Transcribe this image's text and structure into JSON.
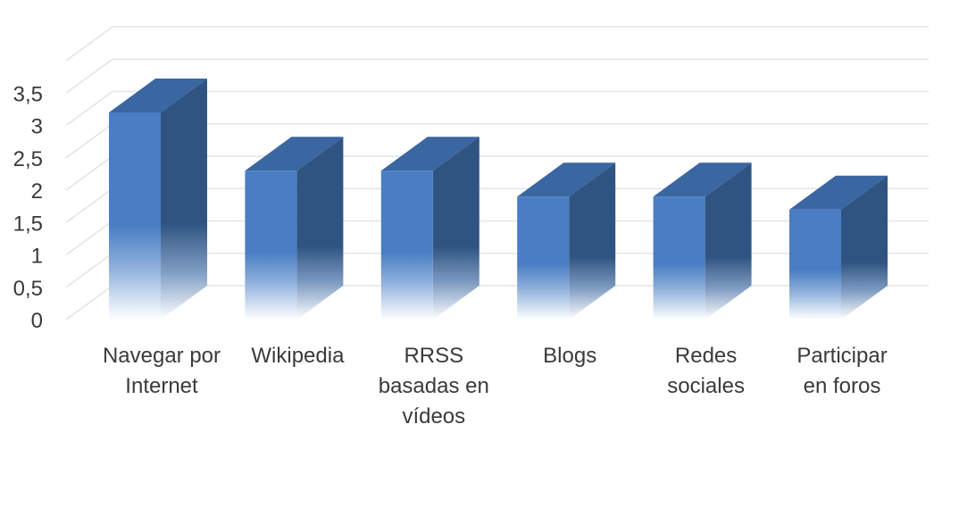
{
  "chart_data": {
    "type": "bar",
    "style": "3d-column",
    "categories": [
      [
        "Navegar por",
        "Internet"
      ],
      [
        "Wikipedia"
      ],
      [
        "RRSS",
        "basadas en",
        "vídeos"
      ],
      [
        "Blogs"
      ],
      [
        "Redes",
        "sociales"
      ],
      [
        "Participar",
        "en foros"
      ]
    ],
    "values": [
      3.2,
      2.3,
      2.3,
      1.9,
      1.9,
      1.7
    ],
    "ylim": [
      0,
      4
    ],
    "yticks": [
      0,
      0.5,
      1,
      1.5,
      2,
      2.5,
      3,
      3.5
    ],
    "ytick_labels": [
      "0",
      "0,5",
      "1",
      "1,5",
      "2",
      "2,5",
      "3",
      "3,5"
    ],
    "grid": true,
    "legend": "none",
    "colors": {
      "front": "#4a7ec3",
      "side": "#2f5481",
      "top": "#3a66a1",
      "grid": "#e4e4e4",
      "text": "#3a3a3a"
    }
  }
}
